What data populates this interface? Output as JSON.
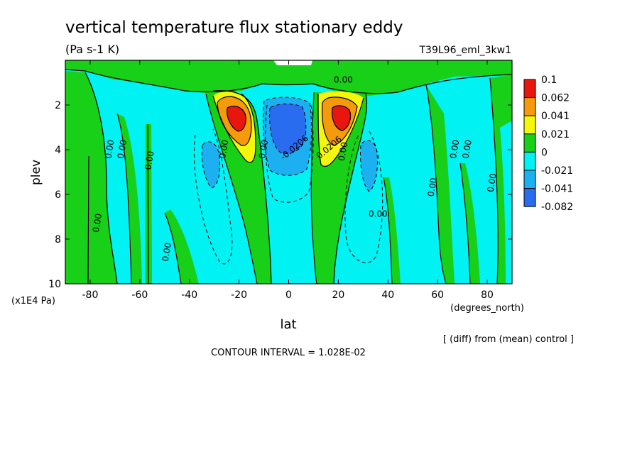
{
  "header": {
    "title": "vertical temperature flux stationary eddy",
    "units": "(Pa s-1 K)",
    "run_label": "T39L96_eml_3kw1"
  },
  "footer": {
    "diff_note": "[ (diff) from (mean) control ]",
    "contour_interval": "CONTOUR INTERVAL = 1.028E-02"
  },
  "chart_data": {
    "type": "heatmap",
    "xlabel": "lat",
    "x_units": "(degrees_north)",
    "ylabel": "plev",
    "y_units": "(x1E4 Pa)",
    "xlim": [
      -90,
      90
    ],
    "ylim": [
      10,
      0
    ],
    "x_ticks": [
      -80,
      -60,
      -40,
      -20,
      0,
      20,
      40,
      60,
      80
    ],
    "y_ticks": [
      2,
      4,
      6,
      8,
      10
    ],
    "grid": false,
    "legend": {
      "placement": "right",
      "levels": [
        "0.1",
        "0.062",
        "0.041",
        "0.021",
        "0",
        "-0.021",
        "-0.041",
        "-0.082"
      ],
      "colors": [
        "#e8160f",
        "#f59b0b",
        "#f5f70a",
        "#18d018",
        "#00f2f2",
        "#1db0f0",
        "#2a6cf0"
      ]
    },
    "contour_labels": [
      {
        "text": "0.00",
        "lat": 22,
        "plev": 1.0
      },
      {
        "text": "0.00",
        "lat": -76,
        "plev": 7.3
      },
      {
        "text": "0.00",
        "lat": -71,
        "plev": 4.0
      },
      {
        "text": "0.00",
        "lat": -66,
        "plev": 4.0
      },
      {
        "text": "0.00",
        "lat": -55,
        "plev": 4.5
      },
      {
        "text": "0.00",
        "lat": -48,
        "plev": 8.6
      },
      {
        "text": "0.00",
        "lat": -25,
        "plev": 4.0
      },
      {
        "text": "0.00",
        "lat": -9,
        "plev": 4.0
      },
      {
        "text": "-0.0206",
        "lat": 3,
        "plev": 4.0
      },
      {
        "text": "0.0206",
        "lat": 17,
        "plev": 4.0
      },
      {
        "text": "0.00",
        "lat": 23,
        "plev": 4.1
      },
      {
        "text": "0.00",
        "lat": 36,
        "plev": 7.0
      },
      {
        "text": "0.00",
        "lat": 59,
        "plev": 5.7
      },
      {
        "text": "0.00",
        "lat": 68,
        "plev": 4.0
      },
      {
        "text": "0.00",
        "lat": 73,
        "plev": 4.0
      },
      {
        "text": "0.00",
        "lat": 83,
        "plev": 5.5
      }
    ]
  }
}
